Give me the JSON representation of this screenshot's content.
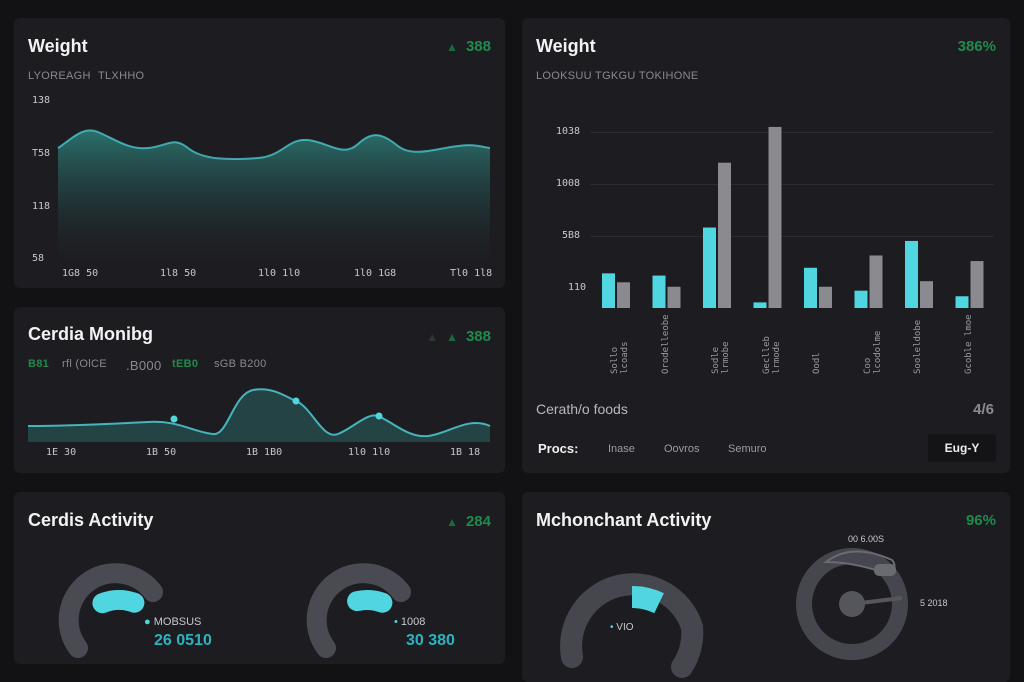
{
  "colors": {
    "accent": "#4fd6e0",
    "teal_fill": "#2a6e6a",
    "grey_bar": "#8a8a90",
    "positive": "#1f8a4c",
    "card": "#1d1d21",
    "bg": "#121214"
  },
  "weight_panel": {
    "title": "Weight",
    "delta": "388",
    "delta_icon": "triangle-up-icon",
    "subtitle_a": "LYOREAGH",
    "subtitle_b": "TLXHHO",
    "y_ticks": [
      "138",
      "T58",
      "118",
      "58"
    ],
    "x_ticks": [
      "1G8 50",
      "1l8 50",
      "1l0 1l0",
      "1l0 1G8",
      "Tl0 1l8"
    ]
  },
  "cardio_panel": {
    "title": "Cerdia Monibg",
    "delta": "388",
    "delta_icon": "triangle-up-icon",
    "sub_a": "B81",
    "sub_b": "rfl (OlCE",
    "sub_c": ".B000",
    "sub_d": "tEB0",
    "sub_e": "sGB B200",
    "x_ticks": [
      "1E 30",
      "1B 50",
      "1B 1B0",
      "1l0 1l0",
      "1B 18"
    ]
  },
  "cardio_activity_panel": {
    "title": "Cerdis Activity",
    "delta": "284",
    "delta_icon": "triangle-up-icon",
    "gauge1_label": "MOBSUS",
    "gauge1_value": "26 0510",
    "gauge1_fraction": 0.28,
    "gauge2_label": "1008",
    "gauge2_value": "30 380",
    "gauge2_fraction": 0.22
  },
  "bar_panel": {
    "title": "Weight",
    "delta": "386%",
    "subtitle": "LOOKSUU TGKGU TOKIHONE",
    "y_ticks": [
      "1038",
      "1008",
      "5B8",
      "110"
    ],
    "footer_label": "Cerath/o foods",
    "footer_value": "4/6",
    "buttons": [
      "Procs:",
      "Inase",
      "Oovros",
      "Semuro"
    ],
    "dropdown": "Eug-Y",
    "x_labels": [
      "Sollo lcoads",
      "Orodelleobe",
      "Sodle lrmobe",
      "Geclleb lrmode",
      "Oodl",
      "Coo lcodolme",
      "Sooleldobe",
      "Gcoble lmoe"
    ]
  },
  "chart_data": {
    "type": "bar",
    "title": "Weight",
    "categories": [
      "Sollo lcoads",
      "Orodelleobe",
      "Sodle lrmobe",
      "Geclleb lrmode",
      "Oodl",
      "Coo lcodolme",
      "Sooleldobe",
      "Gcoble lmoe"
    ],
    "series": [
      {
        "name": "accent",
        "values": [
          310,
          290,
          720,
          50,
          360,
          155,
          600,
          105
        ]
      },
      {
        "name": "grey",
        "values": [
          230,
          190,
          1300,
          1620,
          190,
          470,
          240,
          420
        ]
      }
    ],
    "ylim": [
      0,
      1700
    ]
  },
  "movement_panel": {
    "title": "Mchonchant Activity",
    "delta": "96%",
    "gauge_label": "VIO",
    "gauge_fraction": 0.12,
    "dial_label_a": "00 6.00S",
    "dial_label_b": "5 2018"
  }
}
